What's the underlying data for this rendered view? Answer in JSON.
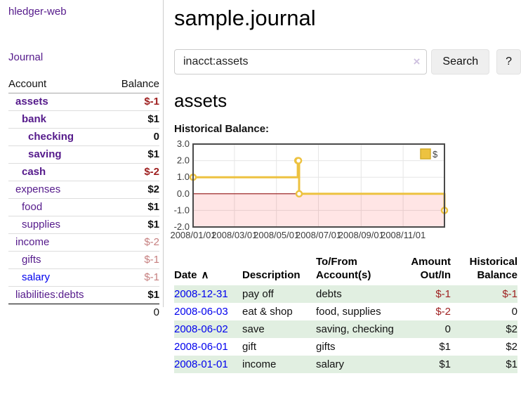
{
  "app": {
    "title": "hledger-web"
  },
  "nav": {
    "journal": "Journal"
  },
  "sidebar": {
    "columns": [
      "Account",
      "Balance"
    ],
    "accounts": [
      {
        "name": "assets",
        "depth": 1,
        "bold": true,
        "link_color": "purple",
        "balance": "$-1",
        "balance_style": "neg"
      },
      {
        "name": "bank",
        "depth": 2,
        "bold": true,
        "link_color": "purple",
        "balance": "$1",
        "balance_style": "plain"
      },
      {
        "name": "checking",
        "depth": 3,
        "bold": true,
        "link_color": "purple",
        "balance": "0",
        "balance_style": "plain"
      },
      {
        "name": "saving",
        "depth": 3,
        "bold": true,
        "link_color": "purple",
        "balance": "$1",
        "balance_style": "plain"
      },
      {
        "name": "cash",
        "depth": 2,
        "bold": true,
        "link_color": "purple",
        "balance": "$-2",
        "balance_style": "neg"
      },
      {
        "name": "expenses",
        "depth": 1,
        "bold": false,
        "link_color": "purple",
        "balance": "$2",
        "balance_style": "plain"
      },
      {
        "name": "food",
        "depth": 2,
        "bold": false,
        "link_color": "purple",
        "balance": "$1",
        "balance_style": "plain"
      },
      {
        "name": "supplies",
        "depth": 2,
        "bold": false,
        "link_color": "purple",
        "balance": "$1",
        "balance_style": "plain"
      },
      {
        "name": "income",
        "depth": 1,
        "bold": false,
        "link_color": "purple",
        "balance": "$-2",
        "balance_style": "rosy"
      },
      {
        "name": "gifts",
        "depth": 2,
        "bold": false,
        "link_color": "purple",
        "balance": "$-1",
        "balance_style": "rosy"
      },
      {
        "name": "salary",
        "depth": 2,
        "bold": false,
        "link_color": "blue",
        "balance": "$-1",
        "balance_style": "rosy"
      },
      {
        "name": "liabilities:debts",
        "depth": 1,
        "bold": false,
        "link_color": "purple",
        "balance": "$1",
        "balance_style": "plain"
      }
    ],
    "total": "0"
  },
  "main": {
    "title": "sample.journal",
    "search": {
      "value": "inacct:assets",
      "clear_icon": "×",
      "button_label": "Search",
      "help_label": "?"
    },
    "account_heading": "assets",
    "section_label": "Historical Balance:"
  },
  "chart_data": {
    "type": "line",
    "step": true,
    "title": "Historical Balance:",
    "series": [
      {
        "name": "$",
        "color": "#edc240",
        "points": [
          [
            "2008-01-01",
            1
          ],
          [
            "2008-06-01",
            2
          ],
          [
            "2008-06-02",
            2
          ],
          [
            "2008-06-03",
            0
          ],
          [
            "2008-12-31",
            -1
          ]
        ]
      }
    ],
    "xrange": [
      "2008-01-01",
      "2008-12-31"
    ],
    "ylim": [
      -2,
      3
    ],
    "yticks": [
      3.0,
      2.0,
      1.0,
      0.0,
      -1.0,
      -2.0
    ],
    "xticks": [
      {
        "label": "2008/01/01",
        "date": "2008-01-01"
      },
      {
        "label": "2008/03/01",
        "date": "2008-03-01"
      },
      {
        "label": "2008/05/01",
        "date": "2008-05-01"
      },
      {
        "label": "2008/07/01",
        "date": "2008-07-01"
      },
      {
        "label": "2008/09/01",
        "date": "2008-09-01"
      },
      {
        "label": "2008/11/01",
        "date": "2008-11-01"
      }
    ],
    "legend": {
      "label": "$",
      "position": "top-right"
    },
    "grid": true,
    "zero_line_color": "#8b0000",
    "negative_fill": "rgba(255,0,0,0.10)"
  },
  "register": {
    "headers": [
      {
        "label": "Date",
        "sort": "∧",
        "align": "left"
      },
      {
        "label": "Description",
        "align": "left"
      },
      {
        "label": "To/From\nAccount(s)",
        "align": "left"
      },
      {
        "label": "Amount\nOut/In",
        "align": "right"
      },
      {
        "label": "Historical\nBalance",
        "align": "right"
      }
    ],
    "rows": [
      {
        "date": "2008-12-31",
        "description": "pay off",
        "accounts": "debts",
        "amount": "$-1",
        "amount_style": "neg",
        "balance": "$-1",
        "balance_style": "neg"
      },
      {
        "date": "2008-06-03",
        "description": "eat & shop",
        "accounts": "food, supplies",
        "amount": "$-2",
        "amount_style": "neg",
        "balance": "0",
        "balance_style": "plain"
      },
      {
        "date": "2008-06-02",
        "description": "save",
        "accounts": "saving, checking",
        "amount": "0",
        "amount_style": "plain",
        "balance": "$2",
        "balance_style": "plain"
      },
      {
        "date": "2008-06-01",
        "description": "gift",
        "accounts": "gifts",
        "amount": "$1",
        "amount_style": "plain",
        "balance": "$2",
        "balance_style": "plain"
      },
      {
        "date": "2008-01-01",
        "description": "income",
        "accounts": "salary",
        "amount": "$1",
        "amount_style": "plain",
        "balance": "$1",
        "balance_style": "plain"
      }
    ]
  },
  "colors": {
    "link_purple": "#551a8b",
    "link_blue": "#0000ee",
    "negative_strong": "#9e1f1f",
    "negative_rosy": "#c67f7f",
    "row_green": "#e1efe1",
    "chart_gold": "#edc240"
  }
}
